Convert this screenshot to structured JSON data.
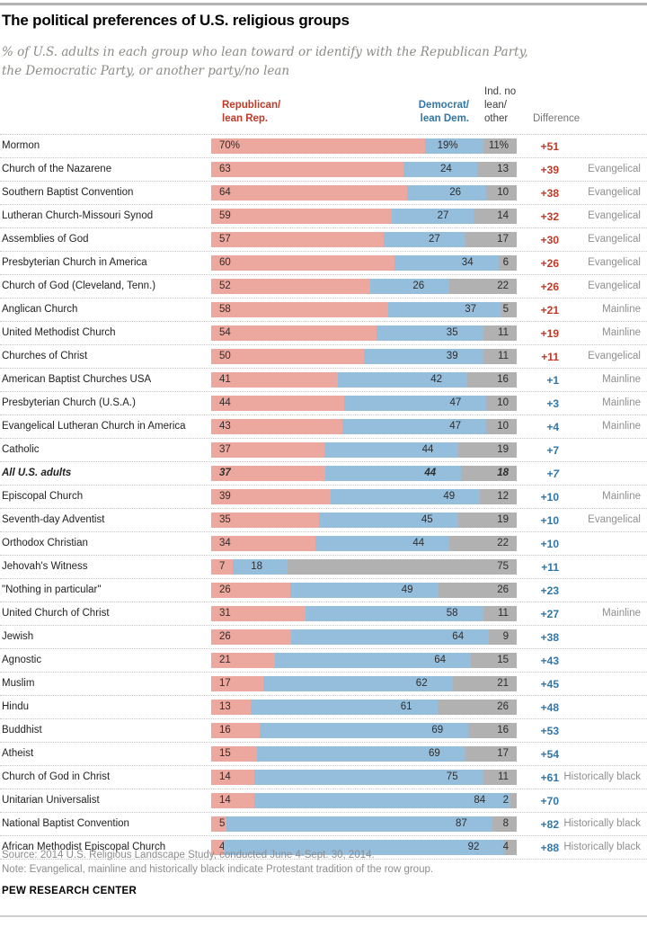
{
  "header": {
    "title": "The political preferences of U.S. religious groups",
    "subtitle1": "% of U.S. adults in each group who lean toward or identify with the Republican Party,",
    "subtitle2": "the Democratic Party, or another party/no lean"
  },
  "columns": {
    "rep1": "Republican/",
    "rep2": "lean Rep.",
    "dem1": "Democrat/",
    "dem2": "lean Dem.",
    "ind1": "Ind. no",
    "ind2": "lean/",
    "ind3": "other",
    "diff": "Difference"
  },
  "colors": {
    "rep_bar": "#eca89e",
    "dem_bar": "#95bedd",
    "ind_bar": "#b1b1b1",
    "rep_text": "#bf3927",
    "dem_text": "#3076a8"
  },
  "chart_data": {
    "type": "bar",
    "orientation": "horizontal",
    "stacked": true,
    "unit": "%",
    "axis_range": [
      0,
      100
    ],
    "grid": false,
    "series_names": [
      "Republican/lean Rep.",
      "Democrat/lean Dem.",
      "Ind. no lean/other"
    ],
    "difference_column": "Difference",
    "rows": [
      {
        "group": "Mormon",
        "values": [
          70,
          19,
          11
        ],
        "labels": [
          "70%",
          "19%",
          "11%"
        ],
        "diff": "+51",
        "diff_side": "rep",
        "tradition": "",
        "emphasis": false
      },
      {
        "group": "Church of the Nazarene",
        "values": [
          63,
          24,
          13
        ],
        "labels": [
          "63",
          "24",
          "13"
        ],
        "diff": "+39",
        "diff_side": "rep",
        "tradition": "Evangelical",
        "emphasis": false
      },
      {
        "group": "Southern Baptist Convention",
        "values": [
          64,
          26,
          10
        ],
        "labels": [
          "64",
          "26",
          "10"
        ],
        "diff": "+38",
        "diff_side": "rep",
        "tradition": "Evangelical",
        "emphasis": false
      },
      {
        "group": "Lutheran Church-Missouri Synod",
        "values": [
          59,
          27,
          14
        ],
        "labels": [
          "59",
          "27",
          "14"
        ],
        "diff": "+32",
        "diff_side": "rep",
        "tradition": "Evangelical",
        "emphasis": false
      },
      {
        "group": "Assemblies of God",
        "values": [
          57,
          27,
          17
        ],
        "labels": [
          "57",
          "27",
          "17"
        ],
        "diff": "+30",
        "diff_side": "rep",
        "tradition": "Evangelical",
        "emphasis": false
      },
      {
        "group": "Presbyterian Church in America",
        "values": [
          60,
          34,
          6
        ],
        "labels": [
          "60",
          "34",
          "6"
        ],
        "diff": "+26",
        "diff_side": "rep",
        "tradition": "Evangelical",
        "emphasis": false
      },
      {
        "group": "Church of God (Cleveland, Tenn.)",
        "values": [
          52,
          26,
          22
        ],
        "labels": [
          "52",
          "26",
          "22"
        ],
        "diff": "+26",
        "diff_side": "rep",
        "tradition": "Evangelical",
        "emphasis": false
      },
      {
        "group": "Anglican Church",
        "values": [
          58,
          37,
          5
        ],
        "labels": [
          "58",
          "37",
          "5"
        ],
        "diff": "+21",
        "diff_side": "rep",
        "tradition": "Mainline",
        "emphasis": false
      },
      {
        "group": "United Methodist Church",
        "values": [
          54,
          35,
          11
        ],
        "labels": [
          "54",
          "35",
          "11"
        ],
        "diff": "+19",
        "diff_side": "rep",
        "tradition": "Mainline",
        "emphasis": false
      },
      {
        "group": "Churches of Christ",
        "values": [
          50,
          39,
          11
        ],
        "labels": [
          "50",
          "39",
          "11"
        ],
        "diff": "+11",
        "diff_side": "rep",
        "tradition": "Evangelical",
        "emphasis": false
      },
      {
        "group": "American Baptist Churches USA",
        "values": [
          41,
          42,
          16
        ],
        "labels": [
          "41",
          "42",
          "16"
        ],
        "diff": "+1",
        "diff_side": "dem",
        "tradition": "Mainline",
        "emphasis": false
      },
      {
        "group": "Presbyterian Church (U.S.A.)",
        "values": [
          44,
          47,
          10
        ],
        "labels": [
          "44",
          "47",
          "10"
        ],
        "diff": "+3",
        "diff_side": "dem",
        "tradition": "Mainline",
        "emphasis": false
      },
      {
        "group": "Evangelical Lutheran Church in America",
        "values": [
          43,
          47,
          10
        ],
        "labels": [
          "43",
          "47",
          "10"
        ],
        "diff": "+4",
        "diff_side": "dem",
        "tradition": "Mainline",
        "emphasis": false
      },
      {
        "group": "Catholic",
        "values": [
          37,
          44,
          19
        ],
        "labels": [
          "37",
          "44",
          "19"
        ],
        "diff": "+7",
        "diff_side": "dem",
        "tradition": "",
        "emphasis": false
      },
      {
        "group": "All U.S. adults",
        "values": [
          37,
          44,
          18
        ],
        "labels": [
          "37",
          "44",
          "18"
        ],
        "diff": "+7",
        "diff_side": "dem",
        "tradition": "",
        "emphasis": true
      },
      {
        "group": "Episcopal Church",
        "values": [
          39,
          49,
          12
        ],
        "labels": [
          "39",
          "49",
          "12"
        ],
        "diff": "+10",
        "diff_side": "dem",
        "tradition": "Mainline",
        "emphasis": false
      },
      {
        "group": "Seventh-day Adventist",
        "values": [
          35,
          45,
          19
        ],
        "labels": [
          "35",
          "45",
          "19"
        ],
        "diff": "+10",
        "diff_side": "dem",
        "tradition": "Evangelical",
        "emphasis": false
      },
      {
        "group": "Orthodox Christian",
        "values": [
          34,
          44,
          22
        ],
        "labels": [
          "34",
          "44",
          "22"
        ],
        "diff": "+10",
        "diff_side": "dem",
        "tradition": "",
        "emphasis": false
      },
      {
        "group": "Jehovah's Witness",
        "values": [
          7,
          18,
          75
        ],
        "labels": [
          "7",
          "18",
          "75"
        ],
        "diff": "+11",
        "diff_side": "dem",
        "tradition": "",
        "emphasis": false
      },
      {
        "group": "\"Nothing in particular\"",
        "values": [
          26,
          49,
          26
        ],
        "labels": [
          "26",
          "49",
          "26"
        ],
        "diff": "+23",
        "diff_side": "dem",
        "tradition": "",
        "emphasis": false
      },
      {
        "group": "United Church of Christ",
        "values": [
          31,
          58,
          11
        ],
        "labels": [
          "31",
          "58",
          "11"
        ],
        "diff": "+27",
        "diff_side": "dem",
        "tradition": "Mainline",
        "emphasis": false
      },
      {
        "group": "Jewish",
        "values": [
          26,
          64,
          9
        ],
        "labels": [
          "26",
          "64",
          "9"
        ],
        "diff": "+38",
        "diff_side": "dem",
        "tradition": "",
        "emphasis": false
      },
      {
        "group": "Agnostic",
        "values": [
          21,
          64,
          15
        ],
        "labels": [
          "21",
          "64",
          "15"
        ],
        "diff": "+43",
        "diff_side": "dem",
        "tradition": "",
        "emphasis": false
      },
      {
        "group": "Muslim",
        "values": [
          17,
          62,
          21
        ],
        "labels": [
          "17",
          "62",
          "21"
        ],
        "diff": "+45",
        "diff_side": "dem",
        "tradition": "",
        "emphasis": false
      },
      {
        "group": "Hindu",
        "values": [
          13,
          61,
          26
        ],
        "labels": [
          "13",
          "61",
          "26"
        ],
        "diff": "+48",
        "diff_side": "dem",
        "tradition": "",
        "emphasis": false
      },
      {
        "group": "Buddhist",
        "values": [
          16,
          69,
          16
        ],
        "labels": [
          "16",
          "69",
          "16"
        ],
        "diff": "+53",
        "diff_side": "dem",
        "tradition": "",
        "emphasis": false
      },
      {
        "group": "Atheist",
        "values": [
          15,
          69,
          17
        ],
        "labels": [
          "15",
          "69",
          "17"
        ],
        "diff": "+54",
        "diff_side": "dem",
        "tradition": "",
        "emphasis": false
      },
      {
        "group": "Church of God in Christ",
        "values": [
          14,
          75,
          11
        ],
        "labels": [
          "14",
          "75",
          "11"
        ],
        "diff": "+61",
        "diff_side": "dem",
        "tradition": "Historically black",
        "emphasis": false
      },
      {
        "group": "Unitarian Universalist",
        "values": [
          14,
          84,
          2
        ],
        "labels": [
          "14",
          "84",
          "2"
        ],
        "diff": "+70",
        "diff_side": "dem",
        "tradition": "",
        "emphasis": false
      },
      {
        "group": "National Baptist Convention",
        "values": [
          5,
          87,
          8
        ],
        "labels": [
          "5",
          "87",
          "8"
        ],
        "diff": "+82",
        "diff_side": "dem",
        "tradition": "Historically black",
        "emphasis": false
      },
      {
        "group": "African Methodist Episcopal Church",
        "values": [
          4,
          92,
          4
        ],
        "labels": [
          "4",
          "92",
          "4"
        ],
        "diff": "+88",
        "diff_side": "dem",
        "tradition": "Historically black",
        "emphasis": false
      }
    ]
  },
  "footer": {
    "source": "Source: 2014 U.S. Religious Landscape Study, conducted June 4-Sept. 30, 2014.",
    "note": "Note: Evangelical, mainline and historically black indicate Protestant tradition of the row group.",
    "brand": "PEW RESEARCH CENTER"
  }
}
